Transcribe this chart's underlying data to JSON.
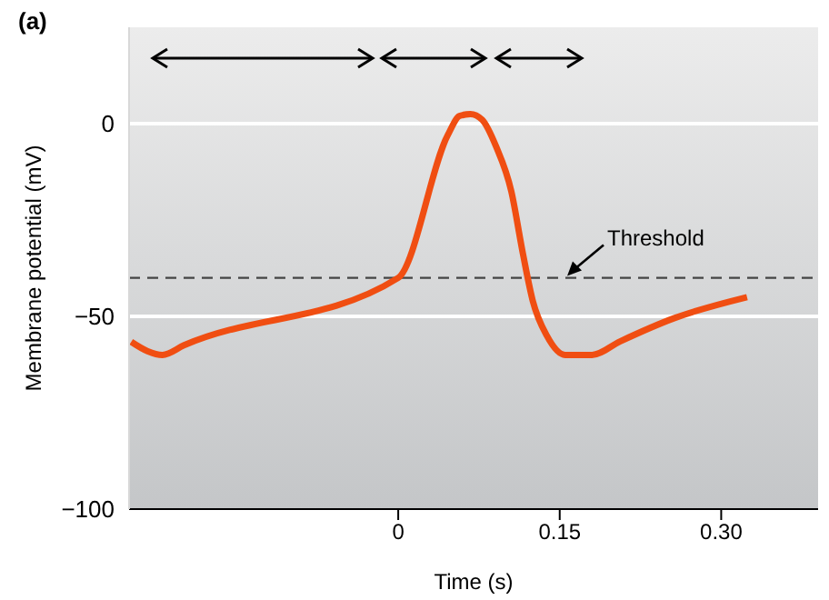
{
  "chart_data": {
    "type": "line",
    "xlabel": "Time (s)",
    "ylabel": "Membrane potential (mV)",
    "annotations": [
      "(a)"
    ],
    "series": [
      {
        "color": "#f04e12",
        "x": [
          -0.248,
          -0.233,
          -0.219,
          -0.199,
          0,
          0.046,
          0.057,
          0.067,
          0.078,
          0.091,
          0.105,
          0.116,
          0.125,
          0.138,
          0.155,
          0.18,
          0.206,
          0.256,
          0.324
        ],
        "values": [
          -56.6,
          -59,
          -60,
          -57.5,
          -40,
          -3,
          2,
          2.5,
          1,
          -6,
          -17.5,
          -34,
          -46,
          -55,
          -60,
          -60,
          -56.5,
          -50.5,
          -45
        ]
      }
    ],
    "xlim": [
      -0.25,
      0.39
    ],
    "xticks": [
      0,
      0.15,
      {
        "value": 0.3,
        "label": "0.30"
      }
    ],
    "ylim": [
      -100,
      25
    ],
    "yticks": [
      {
        "value": -100,
        "label": "−100"
      },
      {
        "value": -50,
        "label": "−50"
      },
      0
    ],
    "ref_lines": [
      {
        "axis": "y",
        "value": -40,
        "label": "Threshold",
        "color": "#444444",
        "line_style": "dashed"
      }
    ],
    "grid": "y",
    "marker": "none",
    "line_style": "solid"
  }
}
